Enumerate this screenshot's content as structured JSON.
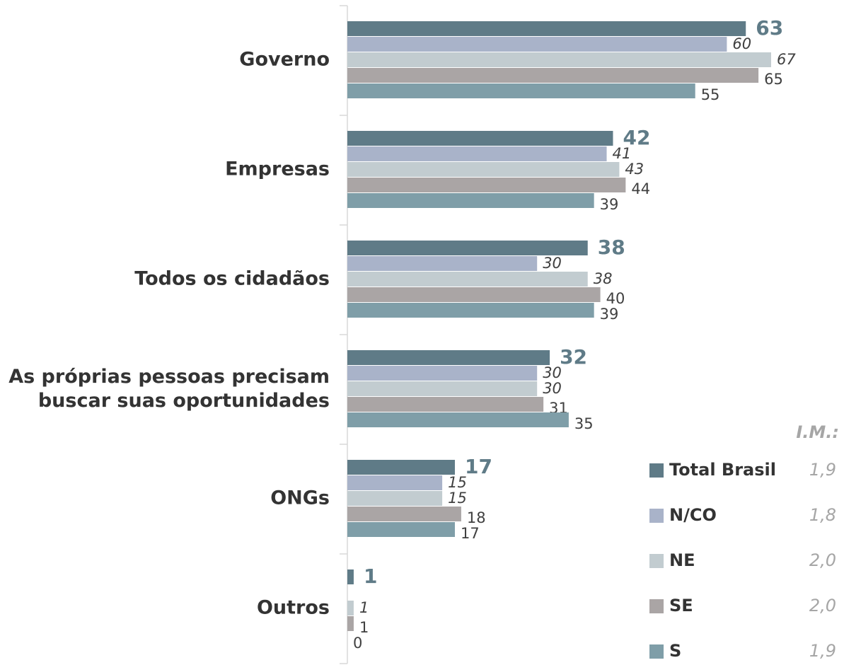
{
  "chart_data": {
    "type": "bar",
    "orientation": "horizontal",
    "categories": [
      "Governo",
      "Empresas",
      "Todos os cidadãos",
      "As próprias pessoas precisam\nbuscar suas oportunidades",
      "ONGs",
      "Outros"
    ],
    "series": [
      {
        "name": "Total Brasil",
        "color": "#5f7b87",
        "values": [
          63,
          42,
          38,
          32,
          17,
          1
        ],
        "im": "1,9"
      },
      {
        "name": "N/CO",
        "color": "#a9b3c9",
        "values": [
          60,
          41,
          30,
          30,
          15,
          null
        ],
        "im": "1,8"
      },
      {
        "name": "NE",
        "color": "#c2ccd0",
        "values": [
          67,
          43,
          38,
          30,
          15,
          1
        ],
        "im": "2,0"
      },
      {
        "name": "SE",
        "color": "#aaa5a5",
        "values": [
          65,
          44,
          40,
          31,
          18,
          1
        ],
        "im": "2,0"
      },
      {
        "name": "S",
        "color": "#7f9ea8",
        "values": [
          55,
          39,
          39,
          35,
          17,
          0
        ],
        "im": "1,9"
      }
    ],
    "legend_extra_title": "I.M.:",
    "legend": "bottom-right"
  }
}
